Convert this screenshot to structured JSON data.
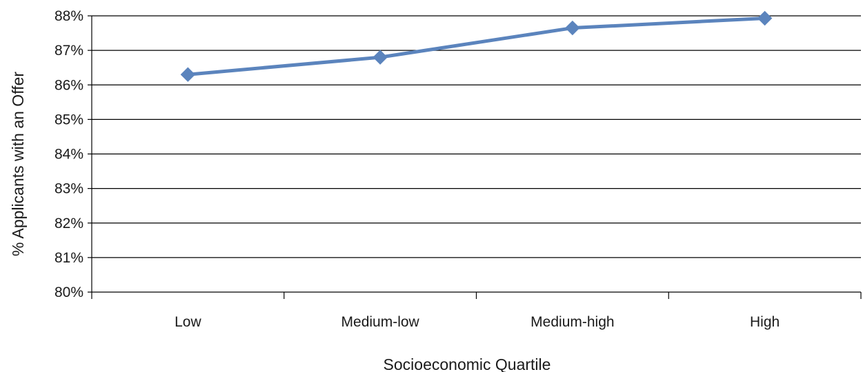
{
  "chart_data": {
    "type": "line",
    "title": "",
    "xlabel": "Socioeconomic Quartile",
    "ylabel": "% Applicants with an Offer",
    "categories": [
      "Low",
      "Medium-low",
      "Medium-high",
      "High"
    ],
    "series": [
      {
        "values": [
          86.3,
          86.8,
          87.65,
          87.93
        ],
        "color": "#5b84bd",
        "marker": "diamond"
      }
    ],
    "ylim": [
      80,
      88
    ],
    "yticks": [
      80,
      81,
      82,
      83,
      84,
      85,
      86,
      87,
      88
    ],
    "ytick_labels": [
      "80%",
      "81%",
      "82%",
      "83%",
      "84%",
      "85%",
      "86%",
      "87%",
      "88%"
    ],
    "grid": true,
    "legend": "none",
    "colors": {
      "line": "#5b84bd",
      "grid": "#000000",
      "text": "#1a1a1a"
    }
  }
}
